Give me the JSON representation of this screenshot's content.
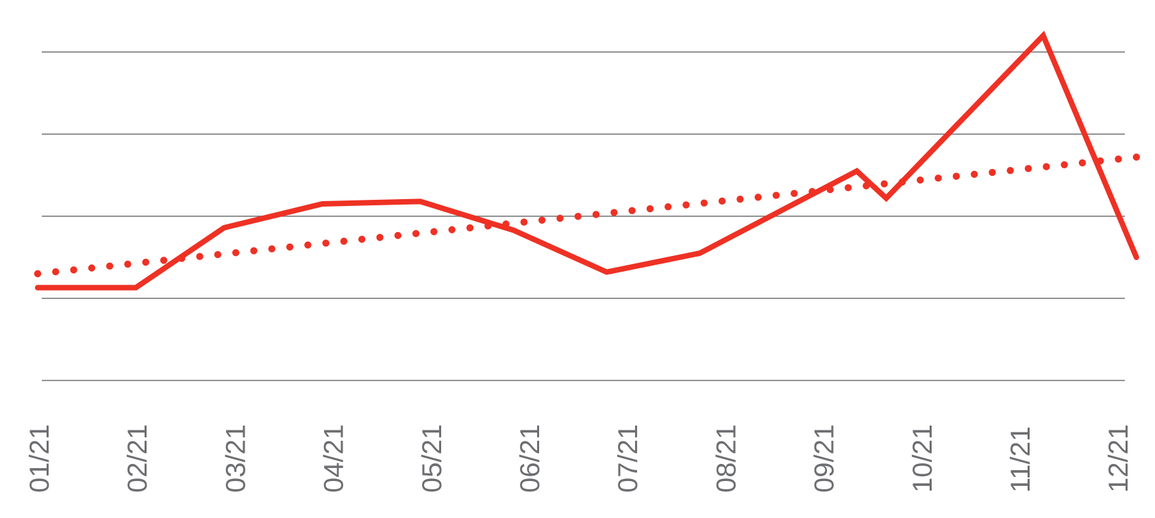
{
  "chart_data": {
    "type": "line",
    "title": "",
    "xlabel": "",
    "ylabel": "",
    "x_ticks": [
      "01/21",
      "02/21",
      "03/21",
      "04/21",
      "05/21",
      "06/21",
      "07/21",
      "08/21",
      "09/21",
      "10/21",
      "11/21",
      "12/21"
    ],
    "ylim": [
      0,
      4
    ],
    "grid": true,
    "y_tick_labels_shown": false,
    "legend": "none",
    "series": [
      {
        "style": "solid",
        "color": "#ee3124",
        "points": [
          {
            "x": 0.0,
            "y": 1.13
          },
          {
            "x": 1.0,
            "y": 1.13
          },
          {
            "x": 1.9,
            "y": 1.86
          },
          {
            "x": 2.9,
            "y": 2.15
          },
          {
            "x": 3.9,
            "y": 2.18
          },
          {
            "x": 4.85,
            "y": 1.83
          },
          {
            "x": 5.8,
            "y": 1.32
          },
          {
            "x": 6.75,
            "y": 1.55
          },
          {
            "x": 8.35,
            "y": 2.55
          },
          {
            "x": 8.65,
            "y": 2.22
          },
          {
            "x": 10.25,
            "y": 4.2
          },
          {
            "x": 11.2,
            "y": 1.5
          }
        ]
      },
      {
        "style": "dotted",
        "color": "#ee3124",
        "trendline": true,
        "points": [
          {
            "x": 0.0,
            "y": 1.3
          },
          {
            "x": 11.2,
            "y": 2.72
          }
        ]
      }
    ]
  }
}
